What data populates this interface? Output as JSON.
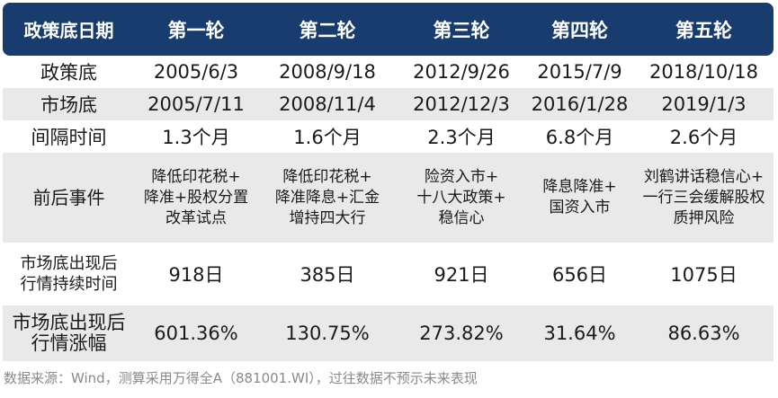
{
  "header": [
    "政策底日期",
    "第一轮",
    "第二轮",
    "第三轮",
    "第四轮",
    "第五轮"
  ],
  "rows": [
    {
      "label": "政策底",
      "values": [
        "2005/6/3",
        "2008/9/18",
        "2012/9/26",
        "2015/7/9",
        "2018/10/18"
      ]
    },
    {
      "label": "市场底",
      "values": [
        "2005/7/11",
        "2008/11/4",
        "2012/12/3",
        "2016/1/28",
        "2019/1/3"
      ]
    },
    {
      "label": "间隔时间",
      "values": [
        "1.3个月",
        "1.6个月",
        "2.3个月",
        "6.8个月",
        "2.6个月"
      ]
    },
    {
      "label": "前后事件",
      "values": [
        "降低印花税+\n降准+股权分置\n改革试点",
        "降低印花税+\n降准降息+汇金\n增持四大行",
        "险资入市+\n十八大政策+\n稳信心",
        "降息降准+\n国资入市",
        "刘鹤讲话稳信心+\n一行三会缓解股权\n质押风险"
      ]
    },
    {
      "label": "市场底出现后\n行情持续时间",
      "values": [
        "918日",
        "385日",
        "921日",
        "656日",
        "1075日"
      ]
    },
    {
      "label": "市场底出现后\n行情涨幅",
      "values": [
        "601.36%",
        "130.75%",
        "273.82%",
        "31.64%",
        "86.63%"
      ]
    }
  ],
  "source_note": "数据来源：Wind，测算采用万得全A（881001.WI），过往数据不预示未来表现"
}
